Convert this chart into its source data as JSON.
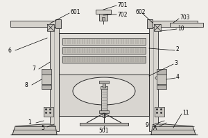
{
  "bg_color": "#e8e8e8",
  "line_color": "#2a2a2a",
  "line_width": 0.7,
  "figsize": [
    3.0,
    2.0
  ],
  "dpi": 100
}
